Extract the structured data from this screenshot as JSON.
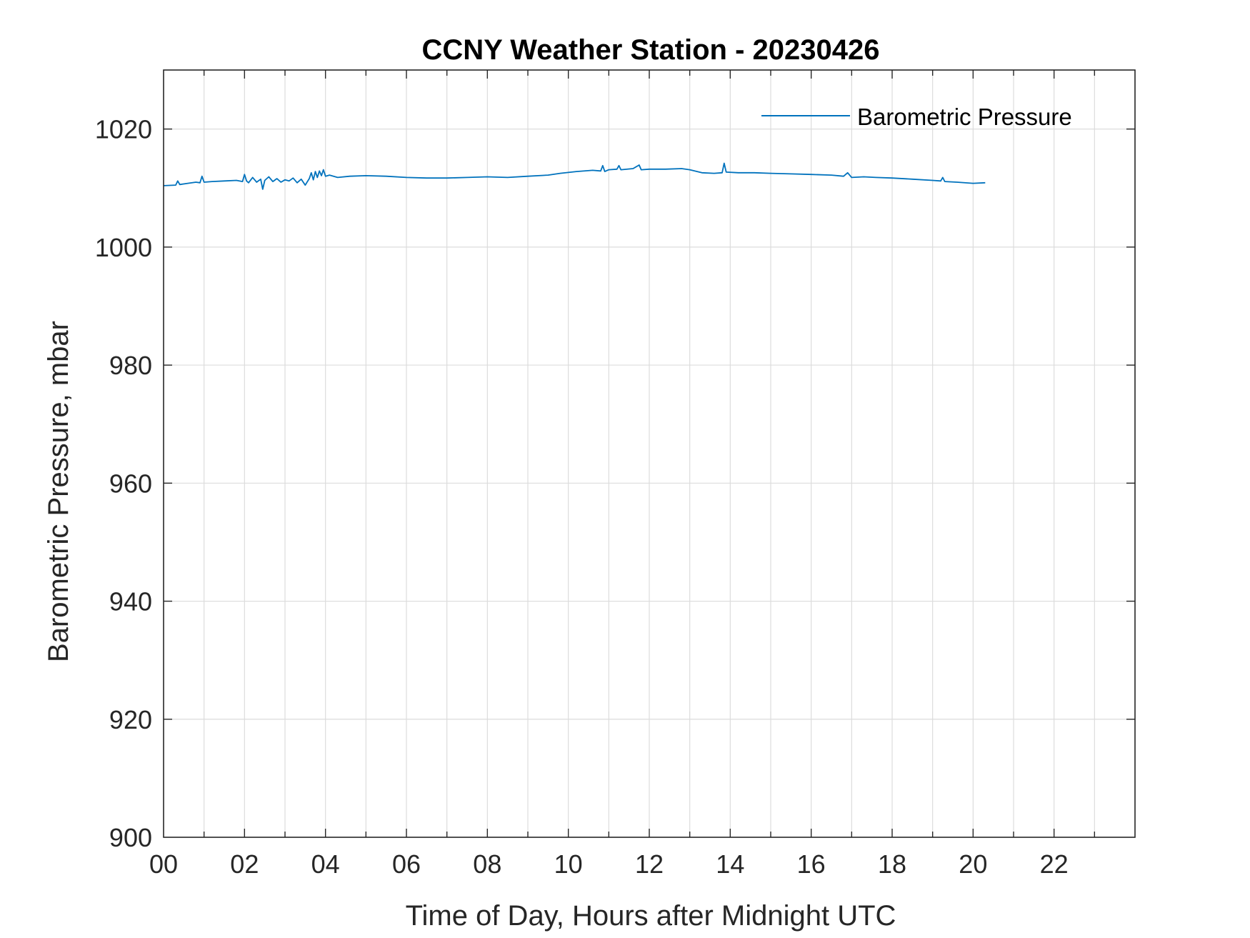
{
  "chart_data": {
    "type": "line",
    "title": "CCNY Weather Station - 20230426",
    "xlabel": "Time of Day, Hours after Midnight UTC",
    "ylabel": "Barometric Pressure, mbar",
    "xlim": [
      0,
      24
    ],
    "ylim": [
      900,
      1030
    ],
    "x_ticks": [
      0,
      2,
      4,
      6,
      8,
      10,
      12,
      14,
      16,
      18,
      20,
      22
    ],
    "x_tick_labels": [
      "00",
      "02",
      "04",
      "06",
      "08",
      "10",
      "12",
      "14",
      "16",
      "18",
      "20",
      "22"
    ],
    "y_ticks": [
      900,
      920,
      940,
      960,
      980,
      1000,
      1020
    ],
    "y_tick_labels": [
      "900",
      "920",
      "940",
      "960",
      "980",
      "1000",
      "1020"
    ],
    "grid": true,
    "legend_position": "top-right",
    "series": [
      {
        "name": "Barometric Pressure",
        "color": "#0072BD",
        "x": [
          0.0,
          0.3,
          0.35,
          0.4,
          0.6,
          0.8,
          0.9,
          0.95,
          1.0,
          1.2,
          1.5,
          1.8,
          1.95,
          2.0,
          2.05,
          2.1,
          2.2,
          2.3,
          2.4,
          2.45,
          2.5,
          2.6,
          2.7,
          2.8,
          2.9,
          3.0,
          3.1,
          3.2,
          3.3,
          3.4,
          3.5,
          3.6,
          3.65,
          3.7,
          3.75,
          3.8,
          3.85,
          3.9,
          3.95,
          4.0,
          4.1,
          4.3,
          4.6,
          5.0,
          5.5,
          6.0,
          6.5,
          7.0,
          7.5,
          8.0,
          8.5,
          9.0,
          9.5,
          9.8,
          10.2,
          10.6,
          10.8,
          10.85,
          10.9,
          11.0,
          11.2,
          11.25,
          11.3,
          11.6,
          11.75,
          11.8,
          12.0,
          12.4,
          12.8,
          13.0,
          13.3,
          13.6,
          13.8,
          13.85,
          13.9,
          14.2,
          14.6,
          15.0,
          15.5,
          16.0,
          16.5,
          16.8,
          16.9,
          17.0,
          17.3,
          17.6,
          18.0,
          18.5,
          19.0,
          19.2,
          19.25,
          19.3,
          19.6,
          20.0,
          20.3
        ],
        "y": [
          1010.4,
          1010.5,
          1011.2,
          1010.6,
          1010.8,
          1011.0,
          1010.9,
          1012.0,
          1011.0,
          1011.1,
          1011.2,
          1011.3,
          1011.1,
          1012.3,
          1011.2,
          1010.9,
          1011.8,
          1011.0,
          1011.5,
          1009.8,
          1011.3,
          1011.9,
          1011.1,
          1011.6,
          1011.0,
          1011.4,
          1011.2,
          1011.7,
          1010.9,
          1011.5,
          1010.5,
          1011.6,
          1012.6,
          1011.4,
          1012.8,
          1011.8,
          1012.9,
          1012.1,
          1013.1,
          1012.0,
          1012.2,
          1011.8,
          1012.0,
          1012.1,
          1012.0,
          1011.8,
          1011.7,
          1011.7,
          1011.8,
          1011.9,
          1011.8,
          1012.0,
          1012.2,
          1012.5,
          1012.8,
          1013.0,
          1012.9,
          1013.8,
          1012.8,
          1013.1,
          1013.2,
          1013.8,
          1013.1,
          1013.3,
          1013.9,
          1013.1,
          1013.2,
          1013.2,
          1013.3,
          1013.1,
          1012.6,
          1012.5,
          1012.6,
          1014.2,
          1012.7,
          1012.6,
          1012.6,
          1012.5,
          1012.4,
          1012.3,
          1012.2,
          1012.0,
          1012.6,
          1011.8,
          1011.9,
          1011.8,
          1011.7,
          1011.5,
          1011.3,
          1011.2,
          1011.8,
          1011.1,
          1011.0,
          1010.8,
          1010.9
        ]
      }
    ]
  }
}
